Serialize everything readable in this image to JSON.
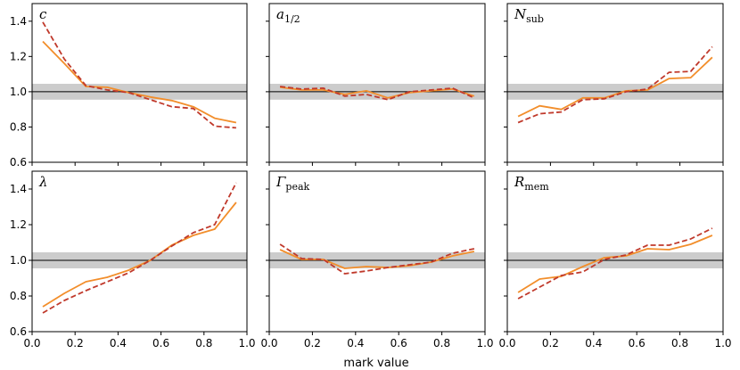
{
  "chart_data": {
    "type": "line",
    "layout": "2x3 grid, shared axes",
    "xlabel": "mark value",
    "xlim": [
      0.0,
      1.0
    ],
    "ylim": [
      0.6,
      1.5
    ],
    "xticks": [
      "0.0",
      "0.2",
      "0.4",
      "0.6",
      "0.8",
      "1.0"
    ],
    "yticks": [
      "0.6",
      "0.8",
      "1.0",
      "1.2",
      "1.4"
    ],
    "reference_line": 1.0,
    "band": [
      0.955,
      1.045
    ],
    "x": [
      0.05,
      0.15,
      0.25,
      0.35,
      0.45,
      0.55,
      0.65,
      0.75,
      0.85,
      0.95
    ],
    "colors": {
      "solid": "#f28e2b",
      "dashed": "#c0392b",
      "band": "#cccccc",
      "refline": "#000000"
    },
    "panels": [
      {
        "id": "c",
        "title": "c",
        "sub": "",
        "series": [
          {
            "name": "solid",
            "style": "solid",
            "values": [
              1.285,
              1.16,
              1.03,
              1.025,
              0.995,
              0.97,
              0.95,
              0.915,
              0.85,
              0.825
            ]
          },
          {
            "name": "dashed",
            "style": "dashed",
            "values": [
              1.395,
              1.185,
              1.035,
              1.01,
              0.995,
              0.955,
              0.915,
              0.905,
              0.805,
              0.795
            ]
          }
        ]
      },
      {
        "id": "a",
        "title": "a",
        "sub": "1/2",
        "series": [
          {
            "name": "solid",
            "style": "solid",
            "values": [
              1.025,
              1.01,
              1.01,
              0.985,
              1.005,
              0.965,
              0.995,
              1.005,
              1.015,
              0.975
            ]
          },
          {
            "name": "dashed",
            "style": "dashed",
            "values": [
              1.03,
              1.015,
              1.02,
              0.975,
              0.985,
              0.955,
              1.0,
              1.01,
              1.02,
              0.965
            ]
          }
        ]
      },
      {
        "id": "N",
        "title": "N",
        "sub": "sub",
        "series": [
          {
            "name": "solid",
            "style": "solid",
            "values": [
              0.86,
              0.92,
              0.9,
              0.965,
              0.965,
              1.005,
              1.01,
              1.075,
              1.08,
              1.195
            ]
          },
          {
            "name": "dashed",
            "style": "dashed",
            "values": [
              0.825,
              0.875,
              0.885,
              0.955,
              0.96,
              1.0,
              1.015,
              1.11,
              1.115,
              1.255
            ]
          }
        ]
      },
      {
        "id": "lambda",
        "title": "λ",
        "sub": "",
        "series": [
          {
            "name": "solid",
            "style": "solid",
            "values": [
              0.74,
              0.815,
              0.88,
              0.905,
              0.945,
              1.0,
              1.085,
              1.14,
              1.175,
              1.325
            ]
          },
          {
            "name": "dashed",
            "style": "dashed",
            "values": [
              0.705,
              0.775,
              0.83,
              0.88,
              0.93,
              1.0,
              1.08,
              1.155,
              1.2,
              1.435
            ]
          }
        ]
      },
      {
        "id": "Gamma",
        "title": "Γ",
        "sub": "peak",
        "series": [
          {
            "name": "solid",
            "style": "solid",
            "values": [
              1.06,
              1.005,
              1.005,
              0.955,
              0.965,
              0.96,
              0.97,
              0.99,
              1.025,
              1.05
            ]
          },
          {
            "name": "dashed",
            "style": "dashed",
            "values": [
              1.09,
              1.01,
              1.005,
              0.925,
              0.94,
              0.96,
              0.975,
              0.99,
              1.04,
              1.065
            ]
          }
        ]
      },
      {
        "id": "R",
        "title": "R",
        "sub": "mem",
        "series": [
          {
            "name": "solid",
            "style": "solid",
            "values": [
              0.82,
              0.895,
              0.91,
              0.965,
              1.015,
              1.025,
              1.065,
              1.06,
              1.09,
              1.14
            ]
          },
          {
            "name": "dashed",
            "style": "dashed",
            "values": [
              0.785,
              0.85,
              0.915,
              0.935,
              1.005,
              1.03,
              1.085,
              1.085,
              1.12,
              1.18
            ]
          }
        ]
      }
    ]
  }
}
